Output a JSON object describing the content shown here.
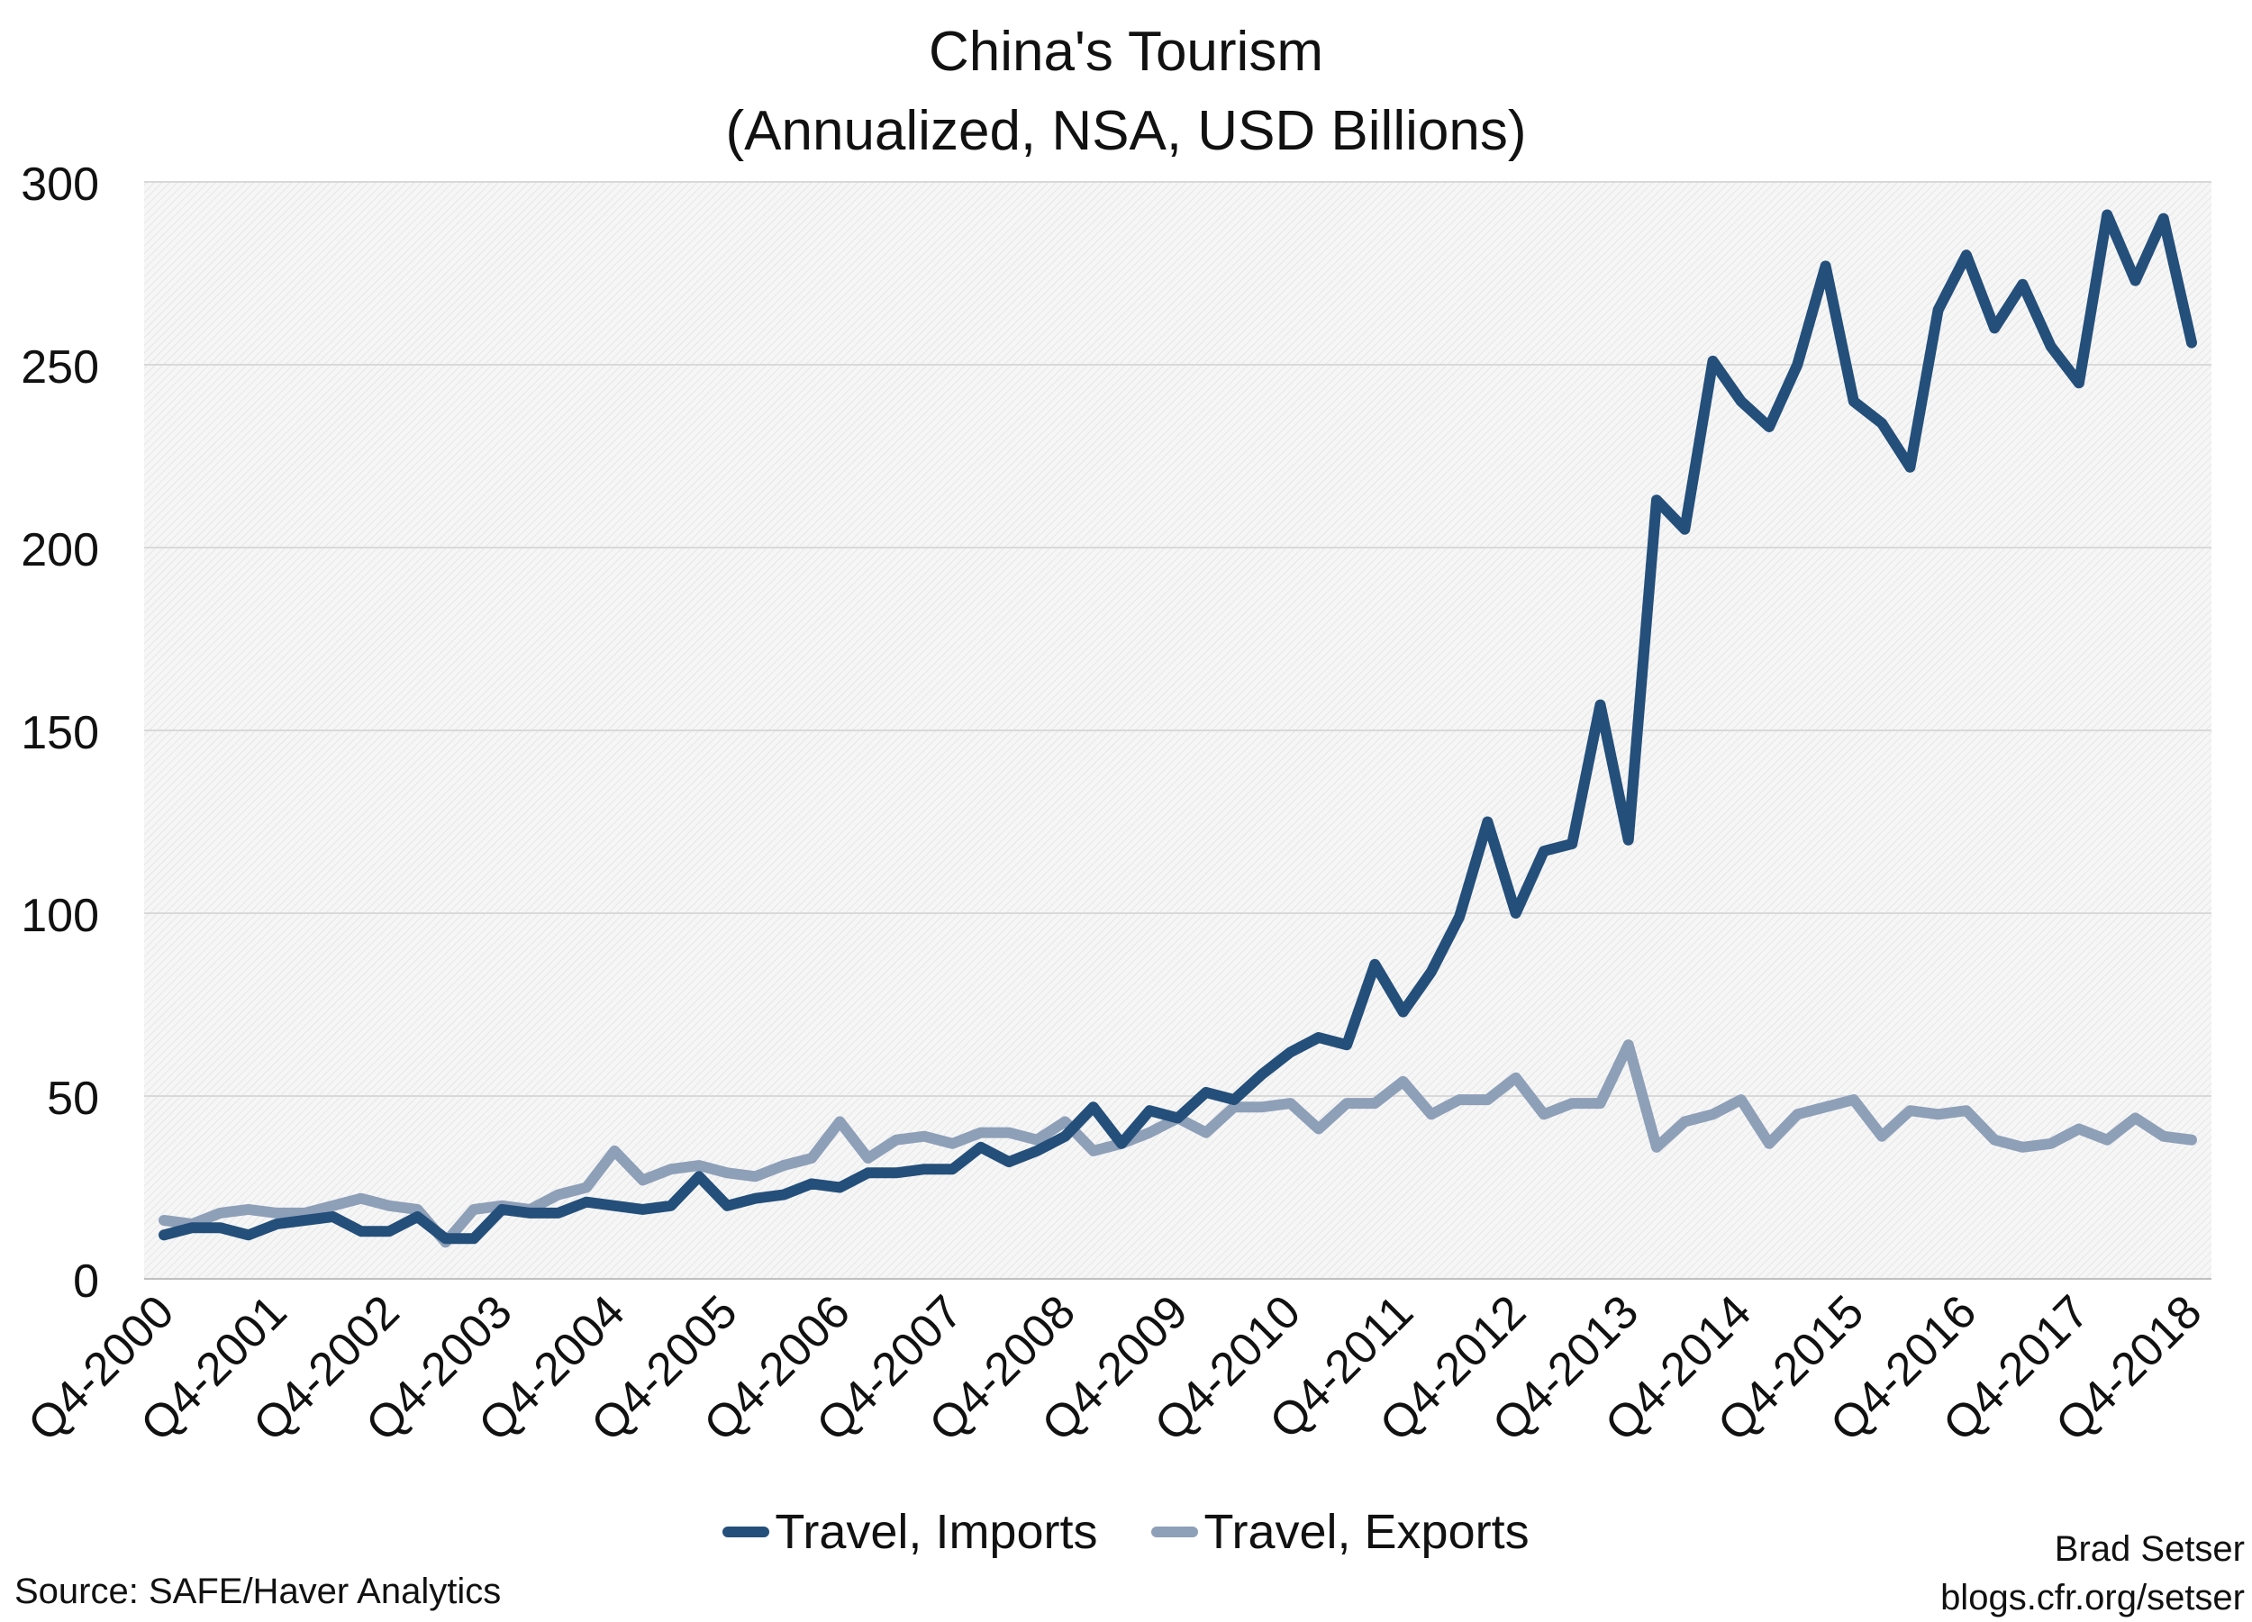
{
  "title_line1": "China's Tourism",
  "title_line2": "(Annualized, NSA, USD Billions)",
  "source": "Source: SAFE/Haver Analytics",
  "credit": {
    "author": "Brad Setser",
    "url": "blogs.cfr.org/setser"
  },
  "colors": {
    "imports": "#244f7a",
    "exports": "#8e9fb8",
    "grid": "#d9d9d9",
    "plot_bg": "#f4f4f4"
  },
  "chart_data": {
    "type": "line",
    "title": "China's Tourism (Annualized, NSA, USD Billions)",
    "xlabel": "",
    "ylabel": "",
    "ylim": [
      0,
      300
    ],
    "yticks": [
      0,
      50,
      100,
      150,
      200,
      250,
      300
    ],
    "grid": true,
    "legend_position": "bottom",
    "x_start": "Q4-2000",
    "x_end": "Q4-2018",
    "x_tick_labels": [
      "Q4-2000",
      "Q4-2001",
      "Q4-2002",
      "Q4-2003",
      "Q4-2004",
      "Q4-2005",
      "Q4-2006",
      "Q4-2007",
      "Q4-2008",
      "Q4-2009",
      "Q4-2010",
      "Q4-2011",
      "Q4-2012",
      "Q4-2013",
      "Q4-2014",
      "Q4-2015",
      "Q4-2016",
      "Q4-2017",
      "Q4-2018"
    ],
    "series": [
      {
        "name": "Travel, Imports",
        "color": "#244f7a",
        "values": [
          12,
          14,
          14,
          12,
          15,
          16,
          17,
          13,
          13,
          17,
          11,
          11,
          19,
          18,
          18,
          21,
          20,
          19,
          20,
          28,
          20,
          22,
          23,
          26,
          25,
          29,
          29,
          30,
          30,
          36,
          32,
          35,
          39,
          47,
          37,
          46,
          44,
          51,
          49,
          56,
          62,
          66,
          64,
          86,
          73,
          84,
          99,
          125,
          100,
          117,
          119,
          157,
          120,
          213,
          205,
          251,
          240,
          233,
          250,
          277,
          240,
          234,
          222,
          265,
          280,
          260,
          272,
          255,
          245,
          291,
          273,
          290,
          256
        ]
      },
      {
        "name": "Travel, Exports",
        "color": "#8e9fb8",
        "values": [
          16,
          15,
          18,
          19,
          18,
          18,
          20,
          22,
          20,
          19,
          10,
          19,
          20,
          19,
          23,
          25,
          35,
          27,
          30,
          31,
          29,
          28,
          31,
          33,
          43,
          33,
          38,
          39,
          37,
          40,
          40,
          38,
          43,
          35,
          37,
          40,
          44,
          40,
          47,
          47,
          48,
          41,
          48,
          48,
          54,
          45,
          49,
          49,
          55,
          45,
          48,
          48,
          64,
          36,
          43,
          45,
          49,
          37,
          45,
          47,
          49,
          39,
          46,
          45,
          46,
          38,
          36,
          37,
          41,
          38,
          44,
          39,
          38
        ]
      }
    ]
  }
}
